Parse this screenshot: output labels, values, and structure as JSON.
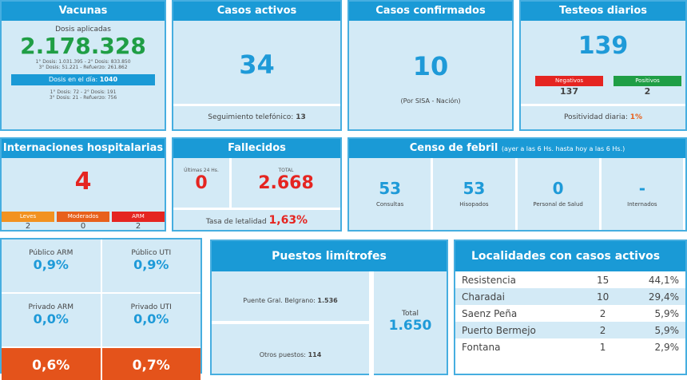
{
  "vacunas": {
    "title": "Vacunas",
    "subtitle": "Dosis aplicadas",
    "total": "2.178.328",
    "line1": "1° Dosis: 1.031.395  -  2° Dosis: 833.850",
    "line2": "3° Dosis: 51.221  -  Refuerzo: 261.862",
    "dia_label": "Dosis en el día:",
    "dia_value": "1040",
    "dia_line1": "1° Dosis: 72  -  2° Dosis: 191",
    "dia_line2": "3° Dosis: 21  -  Refuerzo: 756"
  },
  "activos": {
    "title": "Casos activos",
    "value": "34",
    "footer_label": "Seguimiento telefónico:",
    "footer_value": "13"
  },
  "confirmados": {
    "title": "Casos confirmados",
    "value": "10",
    "note": "(Por SISA - Nación)"
  },
  "testeos": {
    "title": "Testeos diarios",
    "value": "139",
    "neg_label": "Negativos",
    "neg_value": "137",
    "pos_label": "Positivos",
    "pos_value": "2",
    "positividad_label": "Positividad diaria:",
    "positividad_value": "1%"
  },
  "internaciones": {
    "title": "Internaciones hospitalarias",
    "value": "4",
    "items": [
      {
        "label": "Leves",
        "value": "2",
        "color": "#f29220"
      },
      {
        "label": "Moderados",
        "value": "0",
        "color": "#e8601c"
      },
      {
        "label": "ARM",
        "value": "2",
        "color": "#e52521"
      }
    ]
  },
  "fallecidos": {
    "title": "Fallecidos",
    "last_label": "Últimas 24 Hs.",
    "last_value": "0",
    "total_label": "TOTAL",
    "total_value": "2.668",
    "tasa_label": "Tasa de letalidad",
    "tasa_value": "1,63%"
  },
  "censo": {
    "title": "Censo de febril",
    "subtitle": "(ayer a las 6 Hs. hasta hoy a las 6 Hs.)",
    "items": [
      {
        "value": "53",
        "label": "Consultas"
      },
      {
        "value": "53",
        "label": "Hisopados"
      },
      {
        "value": "0",
        "label": "Personal de Salud"
      },
      {
        "value": "-",
        "label": "Internados"
      }
    ]
  },
  "ocupacion": {
    "items": [
      {
        "label": "Público ARM",
        "value": "0,9%"
      },
      {
        "label": "Público UTI",
        "value": "0,9%"
      },
      {
        "label": "Privado ARM",
        "value": "0,0%"
      },
      {
        "label": "Privado UTI",
        "value": "0,0%"
      }
    ],
    "bottom": [
      "0,6%",
      "0,7%"
    ]
  },
  "puestos": {
    "title": "Puestos limítrofes",
    "puente_label": "Puente Gral. Belgrano:",
    "puente_value": "1.536",
    "otros_label": "Otros puestos:",
    "otros_value": "114",
    "total_label": "Total",
    "total_value": "1.650"
  },
  "localidades": {
    "title": "Localidades con casos activos",
    "rows": [
      [
        "Resistencia",
        "15",
        "44,1%"
      ],
      [
        "Charadai",
        "10",
        "29,4%"
      ],
      [
        "Saenz Peña",
        "2",
        "5,9%"
      ],
      [
        "Puerto Bermejo",
        "2",
        "5,9%"
      ],
      [
        "Fontana",
        "1",
        "2,9%"
      ]
    ]
  },
  "colors": {
    "header": "#1a9ad6",
    "body": "#d3eaf6",
    "blue": "#1e9ad8",
    "red": "#e52521",
    "green": "#1f9e45",
    "orange": "#e4531b"
  }
}
